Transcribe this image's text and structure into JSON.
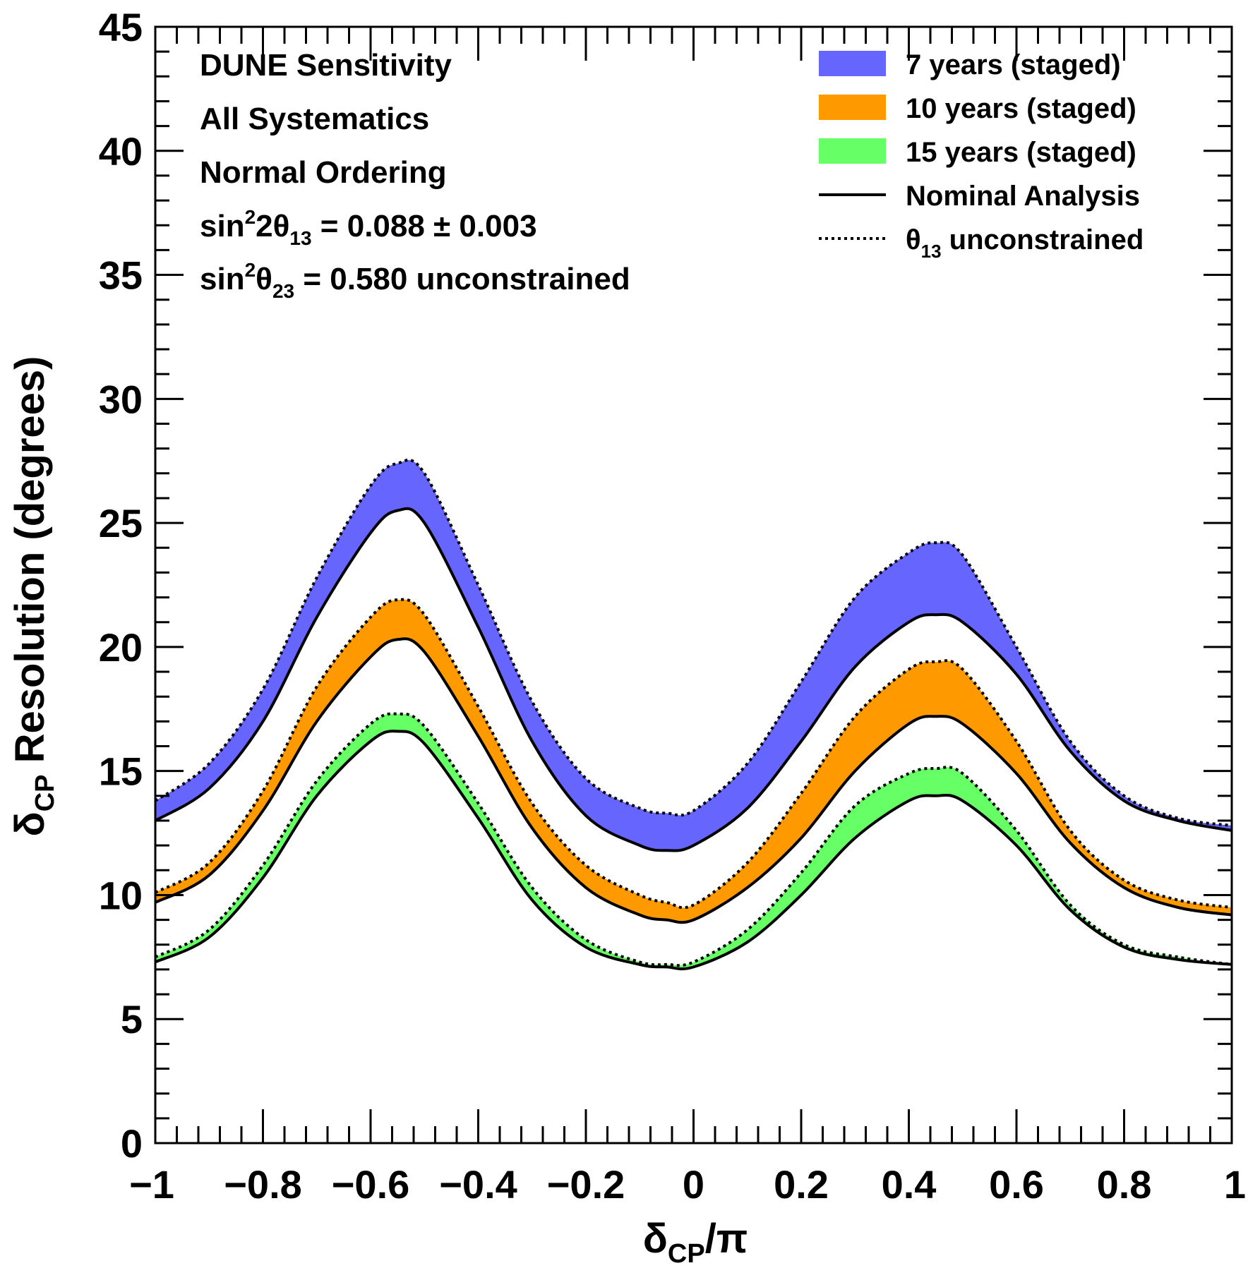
{
  "chart_data": {
    "type": "area",
    "xlabel": "δCP/π",
    "xlabel_main": "δ",
    "xlabel_sub": "CP",
    "xlabel_tail": "/π",
    "ylabel": "δCP Resolution (degrees)",
    "ylabel_main": "δ",
    "ylabel_sub": "CP",
    "ylabel_tail": " Resolution (degrees)",
    "xlim": [
      -1,
      1
    ],
    "ylim": [
      0,
      45
    ],
    "x_ticks": [
      -1,
      -0.8,
      -0.6,
      -0.4,
      -0.2,
      0,
      0.2,
      0.4,
      0.6,
      0.8,
      1
    ],
    "x_tick_labels": [
      "−1",
      "−0.8",
      "−0.6",
      "−0.4",
      "−0.2",
      "0",
      "0.2",
      "0.4",
      "0.6",
      "0.8",
      "1"
    ],
    "y_ticks": [
      0,
      5,
      10,
      15,
      20,
      25,
      30,
      35,
      40,
      45
    ],
    "y_tick_labels": [
      "0",
      "5",
      "10",
      "15",
      "20",
      "25",
      "30",
      "35",
      "40",
      "45"
    ],
    "annotations": {
      "line1": "DUNE Sensitivity",
      "line2": "All Systematics",
      "line3": "Normal Ordering",
      "line4_prefix": "sin",
      "line4_sup": "2",
      "line4_mid": "2θ",
      "line4_sub": "13",
      "line4_value": " = 0.088 ± 0.003",
      "line5_prefix": "sin",
      "line5_sup": "2",
      "line5_mid": "θ",
      "line5_sub": "23",
      "line5_value": " = 0.580 unconstrained"
    },
    "legend": {
      "position": "top-right",
      "entries": [
        {
          "label": "7 years (staged)",
          "kind": "fill",
          "color": "#6666ff"
        },
        {
          "label": "10 years (staged)",
          "kind": "fill",
          "color": "#ff9900"
        },
        {
          "label": "15 years (staged)",
          "kind": "fill",
          "color": "#66ff66"
        },
        {
          "label": "Nominal Analysis",
          "kind": "solid"
        },
        {
          "label_main": "θ",
          "label_sub": "13",
          "label_tail": " unconstrained",
          "kind": "dotted"
        }
      ]
    },
    "x": [
      -1.0,
      -0.9,
      -0.8,
      -0.7,
      -0.6,
      -0.55,
      -0.5,
      -0.4,
      -0.3,
      -0.2,
      -0.1,
      -0.05,
      0.0,
      0.1,
      0.2,
      0.3,
      0.4,
      0.45,
      0.5,
      0.6,
      0.7,
      0.8,
      0.9,
      1.0
    ],
    "series": [
      {
        "name": "7 years (staged)",
        "color": "#6666ff",
        "nominal": [
          13.0,
          14.3,
          17.0,
          21.2,
          24.6,
          25.5,
          25.0,
          20.8,
          16.2,
          13.2,
          12.0,
          11.8,
          12.0,
          13.5,
          16.2,
          19.2,
          21.0,
          21.3,
          21.0,
          18.9,
          15.8,
          13.8,
          13.0,
          12.6
        ],
        "unconstrained": [
          13.8,
          15.3,
          18.3,
          22.8,
          26.5,
          27.4,
          27.0,
          22.5,
          17.8,
          14.7,
          13.5,
          13.3,
          13.4,
          15.3,
          18.6,
          22.0,
          23.8,
          24.2,
          23.7,
          20.0,
          16.2,
          14.0,
          13.1,
          12.8
        ]
      },
      {
        "name": "10 years (staged)",
        "color": "#ff9900",
        "nominal": [
          9.7,
          10.8,
          13.4,
          17.0,
          19.6,
          20.3,
          19.8,
          16.4,
          12.7,
          10.3,
          9.2,
          9.0,
          9.0,
          10.3,
          12.3,
          15.0,
          16.9,
          17.2,
          16.9,
          14.9,
          12.1,
          10.3,
          9.5,
          9.2
        ],
        "unconstrained": [
          10.1,
          11.3,
          14.2,
          18.4,
          21.2,
          21.9,
          21.3,
          17.6,
          13.7,
          11.2,
          10.0,
          9.7,
          9.6,
          11.3,
          14.1,
          17.2,
          19.1,
          19.4,
          19.1,
          16.2,
          12.6,
          10.6,
          9.8,
          9.5
        ]
      },
      {
        "name": "15 years (staged)",
        "color": "#66ff66",
        "nominal": [
          7.3,
          8.3,
          10.7,
          14.0,
          16.2,
          16.6,
          16.1,
          13.1,
          9.8,
          7.9,
          7.2,
          7.1,
          7.1,
          8.1,
          10.0,
          12.3,
          13.8,
          14.0,
          13.8,
          12.0,
          9.4,
          7.9,
          7.4,
          7.2
        ],
        "unconstrained": [
          7.5,
          8.6,
          11.2,
          14.6,
          16.9,
          17.3,
          16.8,
          13.7,
          10.3,
          8.2,
          7.3,
          7.2,
          7.3,
          8.6,
          10.9,
          13.6,
          14.9,
          15.1,
          14.9,
          12.6,
          9.6,
          8.0,
          7.5,
          7.2
        ]
      }
    ]
  }
}
